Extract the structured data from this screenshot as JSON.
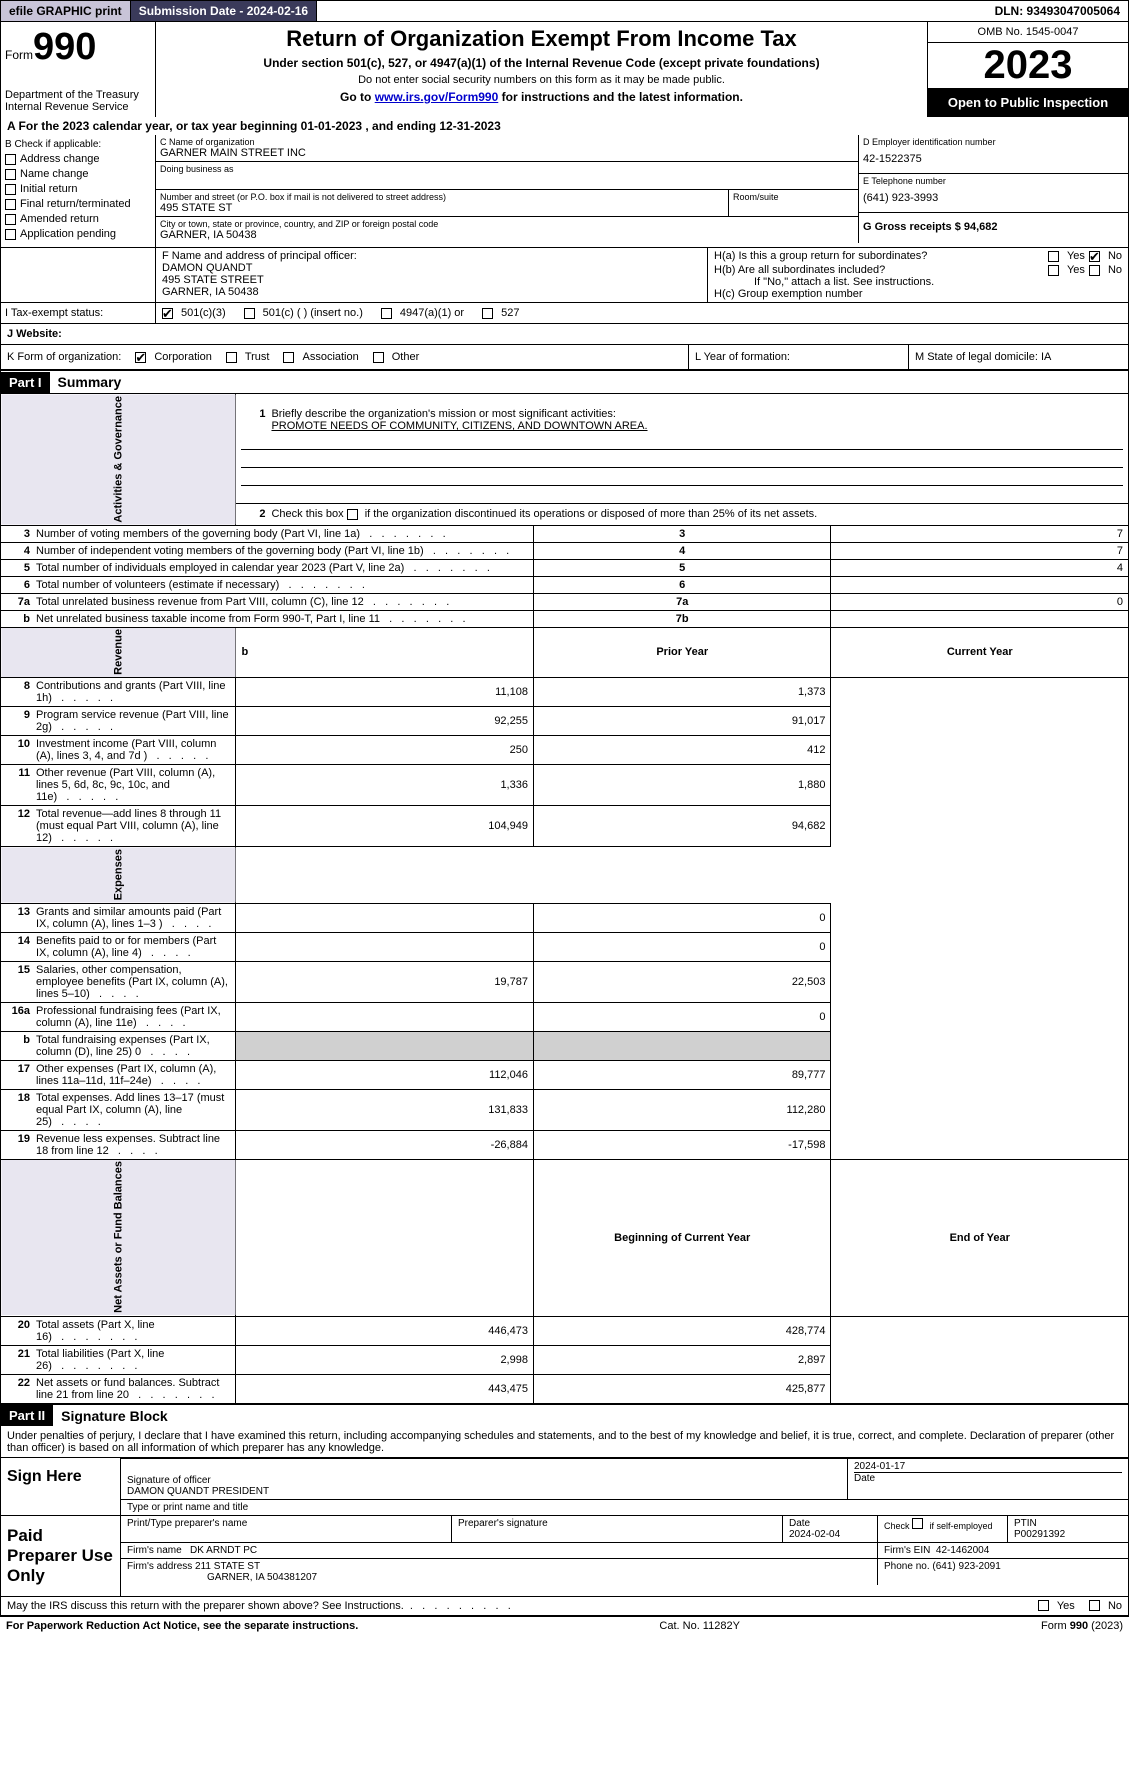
{
  "topbar": {
    "efile": "efile GRAPHIC print ",
    "submission": "Submission Date - 2024-02-16",
    "dln": "DLN: 93493047005064"
  },
  "header": {
    "form_word": "Form",
    "form_num": "990",
    "title": "Return of Organization Exempt From Income Tax",
    "subtitle": "Under section 501(c), 527, or 4947(a)(1) of the Internal Revenue Code (except private foundations)",
    "note1": "Do not enter social security numbers on this form as it may be made public.",
    "note2_pre": "Go to ",
    "note2_link": "www.irs.gov/Form990",
    "note2_post": " for instructions and the latest information.",
    "dept": "Department of the Treasury\nInternal Revenue Service",
    "omb": "OMB No. 1545-0047",
    "year": "2023",
    "inspection": "Open to Public Inspection"
  },
  "section_a": "A  For the 2023 calendar year, or tax year beginning 01-01-2023     , and ending 12-31-2023",
  "section_b": {
    "label": "B Check if applicable:",
    "items": [
      "Address change",
      "Name change",
      "Initial return",
      "Final return/terminated",
      "Amended return",
      "Application pending"
    ]
  },
  "section_c": {
    "name_label": "C Name of organization",
    "name": "GARNER MAIN STREET INC",
    "dba_label": "Doing business as",
    "addr_label": "Number and street (or P.O. box if mail is not delivered to street address)",
    "addr": "495 STATE ST",
    "room_label": "Room/suite",
    "city_label": "City or town, state or province, country, and ZIP or foreign postal code",
    "city": "GARNER, IA  50438"
  },
  "section_d": {
    "label": "D Employer identification number",
    "value": "42-1522375"
  },
  "section_e": {
    "label": "E Telephone number",
    "value": "(641) 923-3993"
  },
  "section_g": {
    "label": "G Gross receipts $ 94,682"
  },
  "section_f": {
    "label": "F  Name and address of principal officer:",
    "name": "DAMON QUANDT",
    "addr1": "495 STATE STREET",
    "addr2": "GARNER, IA  50438"
  },
  "section_h": {
    "ha_label": "H(a)  Is this a group return for subordinates?",
    "hb_label": "H(b)  Are all subordinates included?",
    "hb_note": "If \"No,\" attach a list. See instructions.",
    "hc_label": "H(c)  Group exemption number",
    "yes": "Yes",
    "no": "No"
  },
  "tax_exempt": {
    "label": "I    Tax-exempt status:",
    "c3": "501(c)(3)",
    "c": "501(c) (  ) (insert no.)",
    "a1": "4947(a)(1) or",
    "s527": "527"
  },
  "website": {
    "label": "J   Website:"
  },
  "form_org": {
    "label": "K Form of organization:",
    "corp": "Corporation",
    "trust": "Trust",
    "assoc": "Association",
    "other": "Other"
  },
  "year_formation": "L Year of formation:",
  "state_domicile": {
    "label": "M State of legal domicile: ",
    "value": "IA"
  },
  "part1": {
    "header": "Part I",
    "title": "Summary",
    "line1_label": "Briefly describe the organization's mission or most significant activities:",
    "line1_value": "PROMOTE NEEDS OF COMMUNITY, CITIZENS, AND DOWNTOWN AREA.",
    "line2": "Check this box        if the organization discontinued its operations or disposed of more than 25% of its net assets.",
    "lines_gov": [
      {
        "n": "3",
        "d": "Number of voting members of the governing body (Part VI, line 1a)",
        "box": "3",
        "v": "7"
      },
      {
        "n": "4",
        "d": "Number of independent voting members of the governing body (Part VI, line 1b)",
        "box": "4",
        "v": "7"
      },
      {
        "n": "5",
        "d": "Total number of individuals employed in calendar year 2023 (Part V, line 2a)",
        "box": "5",
        "v": "4"
      },
      {
        "n": "6",
        "d": "Total number of volunteers (estimate if necessary)",
        "box": "6",
        "v": ""
      },
      {
        "n": "7a",
        "d": "Total unrelated business revenue from Part VIII, column (C), line 12",
        "box": "7a",
        "v": "0"
      },
      {
        "n": "b",
        "d": "Net unrelated business taxable income from Form 990-T, Part I, line 11",
        "box": "7b",
        "v": ""
      }
    ],
    "col_prior": "Prior Year",
    "col_current": "Current Year",
    "rev_rows": [
      {
        "n": "8",
        "d": "Contributions and grants (Part VIII, line 1h)",
        "p": "11,108",
        "c": "1,373"
      },
      {
        "n": "9",
        "d": "Program service revenue (Part VIII, line 2g)",
        "p": "92,255",
        "c": "91,017"
      },
      {
        "n": "10",
        "d": "Investment income (Part VIII, column (A), lines 3, 4, and 7d )",
        "p": "250",
        "c": "412"
      },
      {
        "n": "11",
        "d": "Other revenue (Part VIII, column (A), lines 5, 6d, 8c, 9c, 10c, and 11e)",
        "p": "1,336",
        "c": "1,880"
      },
      {
        "n": "12",
        "d": "Total revenue—add lines 8 through 11 (must equal Part VIII, column (A), line 12)",
        "p": "104,949",
        "c": "94,682"
      }
    ],
    "exp_rows": [
      {
        "n": "13",
        "d": "Grants and similar amounts paid (Part IX, column (A), lines 1–3 )",
        "p": "",
        "c": "0"
      },
      {
        "n": "14",
        "d": "Benefits paid to or for members (Part IX, column (A), line 4)",
        "p": "",
        "c": "0"
      },
      {
        "n": "15",
        "d": "Salaries, other compensation, employee benefits (Part IX, column (A), lines 5–10)",
        "p": "19,787",
        "c": "22,503"
      },
      {
        "n": "16a",
        "d": "Professional fundraising fees (Part IX, column (A), line 11e)",
        "p": "",
        "c": "0"
      },
      {
        "n": "b",
        "d": "Total fundraising expenses (Part IX, column (D), line 25) 0",
        "p": "grey",
        "c": "grey"
      },
      {
        "n": "17",
        "d": "Other expenses (Part IX, column (A), lines 11a–11d, 11f–24e)",
        "p": "112,046",
        "c": "89,777"
      },
      {
        "n": "18",
        "d": "Total expenses. Add lines 13–17 (must equal Part IX, column (A), line 25)",
        "p": "131,833",
        "c": "112,280"
      },
      {
        "n": "19",
        "d": "Revenue less expenses. Subtract line 18 from line 12",
        "p": "-26,884",
        "c": "-17,598"
      }
    ],
    "col_begin": "Beginning of Current Year",
    "col_end": "End of Year",
    "net_rows": [
      {
        "n": "20",
        "d": "Total assets (Part X, line 16)",
        "p": "446,473",
        "c": "428,774"
      },
      {
        "n": "21",
        "d": "Total liabilities (Part X, line 26)",
        "p": "2,998",
        "c": "2,897"
      },
      {
        "n": "22",
        "d": "Net assets or fund balances. Subtract line 21 from line 20",
        "p": "443,475",
        "c": "425,877"
      }
    ],
    "vg_gov": "Activities & Governance",
    "vg_rev": "Revenue",
    "vg_exp": "Expenses",
    "vg_net": "Net Assets or Fund Balances"
  },
  "part2": {
    "header": "Part II",
    "title": "Signature Block",
    "perjury": "Under penalties of perjury, I declare that I have examined this return, including accompanying schedules and statements, and to the best of my knowledge and belief, it is true, correct, and complete. Declaration of preparer (other than officer) is based on all information of which preparer has any knowledge.",
    "sign_here": "Sign Here",
    "sig_officer_label": "Signature of officer",
    "sig_officer": "DAMON QUANDT PRESIDENT",
    "sig_type_label": "Type or print name and title",
    "sig_date_label": "Date",
    "sig_date": "2024-01-17",
    "paid": "Paid Preparer Use Only",
    "prep_name_label": "Print/Type preparer's name",
    "prep_sig_label": "Preparer's signature",
    "prep_date": "2024-02-04",
    "prep_check": "Check        if self-employed",
    "ptin_label": "PTIN",
    "ptin": "P00291392",
    "firm_name_label": "Firm's name",
    "firm_name": "DK ARNDT PC",
    "firm_ein_label": "Firm's EIN",
    "firm_ein": "42-1462004",
    "firm_addr_label": "Firm's address",
    "firm_addr": "211 STATE ST",
    "firm_city": "GARNER, IA  504381207",
    "phone_label": "Phone no.",
    "phone": "(641) 923-2091",
    "irs_discuss": "May the IRS discuss this return with the preparer shown above? See Instructions."
  },
  "footer": {
    "paperwork": "For Paperwork Reduction Act Notice, see the separate instructions.",
    "cat": "Cat. No. 11282Y",
    "form": "Form 990 (2023)"
  }
}
